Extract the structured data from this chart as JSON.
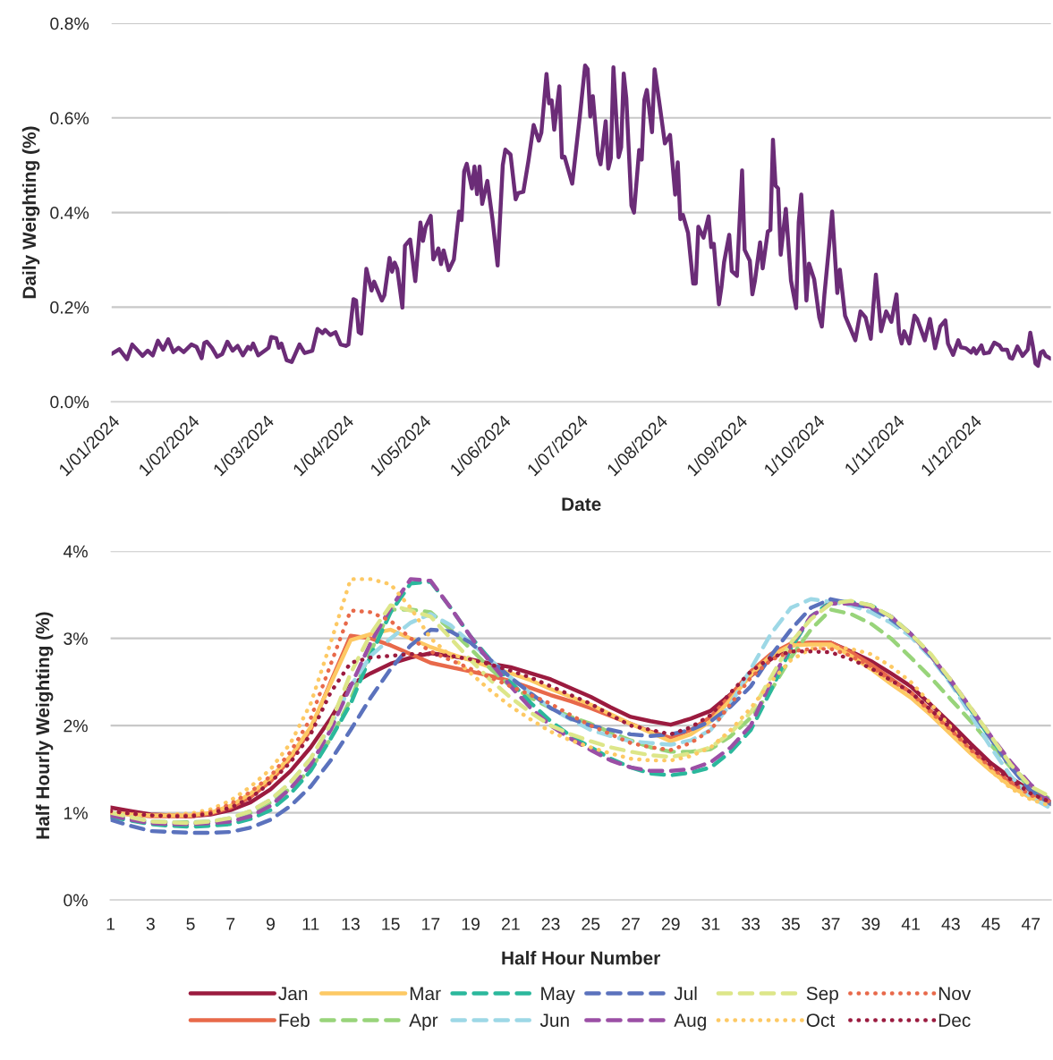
{
  "chart_data": [
    {
      "type": "line",
      "xlabel": "Date",
      "ylabel": "Daily Weighting (%)",
      "x": [
        "2024-01-01",
        "2024-01-04",
        "2024-01-07",
        "2024-01-09",
        "2024-01-13",
        "2024-01-15",
        "2024-01-17",
        "2024-01-19",
        "2024-01-21",
        "2024-01-23",
        "2024-01-25",
        "2024-01-27",
        "2024-01-29",
        "2024-02-01",
        "2024-02-03",
        "2024-02-05",
        "2024-02-06",
        "2024-02-07",
        "2024-02-09",
        "2024-02-11",
        "2024-02-13",
        "2024-02-15",
        "2024-02-17",
        "2024-02-19",
        "2024-02-21",
        "2024-02-23",
        "2024-02-24",
        "2024-02-25",
        "2024-02-27",
        "2024-03-01",
        "2024-03-02",
        "2024-03-03",
        "2024-03-05",
        "2024-03-06",
        "2024-03-07",
        "2024-03-09",
        "2024-03-11",
        "2024-03-14",
        "2024-03-16",
        "2024-03-19",
        "2024-03-21",
        "2024-03-23",
        "2024-03-24",
        "2024-03-26",
        "2024-03-28",
        "2024-03-30",
        "2024-04-01",
        "2024-04-02",
        "2024-04-04",
        "2024-04-05",
        "2024-04-06",
        "2024-04-07",
        "2024-04-09",
        "2024-04-11",
        "2024-04-12",
        "2024-04-15",
        "2024-04-16",
        "2024-04-18",
        "2024-04-19",
        "2024-04-20",
        "2024-04-21",
        "2024-04-23",
        "2024-04-24",
        "2024-04-26",
        "2024-04-28",
        "2024-04-30",
        "2024-05-01",
        "2024-05-02",
        "2024-05-04",
        "2024-05-05",
        "2024-05-07",
        "2024-05-08",
        "2024-05-09",
        "2024-05-11",
        "2024-05-13",
        "2024-05-15",
        "2024-05-16",
        "2024-05-17",
        "2024-05-18",
        "2024-05-20",
        "2024-05-21",
        "2024-05-22",
        "2024-05-23",
        "2024-05-24",
        "2024-05-26",
        "2024-05-28",
        "2024-05-30",
        "2024-06-01",
        "2024-06-02",
        "2024-06-04",
        "2024-06-06",
        "2024-06-07",
        "2024-06-09",
        "2024-06-11",
        "2024-06-13",
        "2024-06-15",
        "2024-06-16",
        "2024-06-18",
        "2024-06-19",
        "2024-06-20",
        "2024-06-21",
        "2024-06-23",
        "2024-06-24",
        "2024-06-25",
        "2024-06-28",
        "2024-07-01",
        "2024-07-03",
        "2024-07-04",
        "2024-07-05",
        "2024-07-06",
        "2024-07-08",
        "2024-07-09",
        "2024-07-11",
        "2024-07-12",
        "2024-07-13",
        "2024-07-14",
        "2024-07-16",
        "2024-07-17",
        "2024-07-18",
        "2024-07-19",
        "2024-07-21",
        "2024-07-22",
        "2024-07-24",
        "2024-07-25",
        "2024-07-26",
        "2024-07-27",
        "2024-07-29",
        "2024-07-30",
        "2024-08-01",
        "2024-08-03",
        "2024-08-05",
        "2024-08-07",
        "2024-08-08",
        "2024-08-09",
        "2024-08-10",
        "2024-08-12",
        "2024-08-14",
        "2024-08-15",
        "2024-08-16",
        "2024-08-18",
        "2024-08-20",
        "2024-08-21",
        "2024-08-22",
        "2024-08-24",
        "2024-08-25",
        "2024-08-26",
        "2024-08-28",
        "2024-08-29",
        "2024-08-31",
        "2024-09-02",
        "2024-09-03",
        "2024-09-05",
        "2024-09-06",
        "2024-09-07",
        "2024-09-09",
        "2024-09-10",
        "2024-09-12",
        "2024-09-13",
        "2024-09-14",
        "2024-09-15",
        "2024-09-16",
        "2024-09-17",
        "2024-09-19",
        "2024-09-21",
        "2024-09-23",
        "2024-09-24",
        "2024-09-25",
        "2024-09-27",
        "2024-09-28",
        "2024-09-30",
        "2024-10-02",
        "2024-10-03",
        "2024-10-04",
        "2024-10-06",
        "2024-10-07",
        "2024-10-09",
        "2024-10-10",
        "2024-10-12",
        "2024-10-14",
        "2024-10-16",
        "2024-10-18",
        "2024-10-20",
        "2024-10-22",
        "2024-10-24",
        "2024-10-26",
        "2024-10-28",
        "2024-10-30",
        "2024-11-01",
        "2024-11-02",
        "2024-11-03",
        "2024-11-04",
        "2024-11-06",
        "2024-11-08",
        "2024-11-09",
        "2024-11-12",
        "2024-11-14",
        "2024-11-16",
        "2024-11-18",
        "2024-11-20",
        "2024-11-21",
        "2024-11-23",
        "2024-11-25",
        "2024-11-26",
        "2024-11-28",
        "2024-11-30",
        "2024-12-01",
        "2024-12-02",
        "2024-12-04",
        "2024-12-05",
        "2024-12-07",
        "2024-12-09",
        "2024-12-11",
        "2024-12-12",
        "2024-12-14",
        "2024-12-15",
        "2024-12-16",
        "2024-12-18",
        "2024-12-20",
        "2024-12-22",
        "2024-12-23",
        "2024-12-24",
        "2024-12-25",
        "2024-12-26",
        "2024-12-27",
        "2024-12-28",
        "2024-12-29",
        "2024-12-31"
      ],
      "series": [
        {
          "color": "#6b2c77",
          "values": [
            0.101,
            0.111,
            0.09,
            0.121,
            0.097,
            0.108,
            0.098,
            0.129,
            0.11,
            0.132,
            0.105,
            0.114,
            0.105,
            0.121,
            0.116,
            0.092,
            0.124,
            0.127,
            0.114,
            0.095,
            0.101,
            0.127,
            0.108,
            0.118,
            0.098,
            0.116,
            0.111,
            0.123,
            0.098,
            0.11,
            0.114,
            0.137,
            0.134,
            0.114,
            0.123,
            0.088,
            0.084,
            0.121,
            0.103,
            0.108,
            0.154,
            0.145,
            0.152,
            0.141,
            0.147,
            0.121,
            0.118,
            0.121,
            0.217,
            0.214,
            0.147,
            0.144,
            0.281,
            0.235,
            0.254,
            0.214,
            0.225,
            0.304,
            0.275,
            0.294,
            0.281,
            0.199,
            0.33,
            0.343,
            0.255,
            0.379,
            0.34,
            0.369,
            0.393,
            0.301,
            0.324,
            0.291,
            0.32,
            0.278,
            0.301,
            0.402,
            0.384,
            0.487,
            0.503,
            0.451,
            0.497,
            0.439,
            0.497,
            0.418,
            0.467,
            0.386,
            0.288,
            0.5,
            0.533,
            0.523,
            0.428,
            0.441,
            0.444,
            0.51,
            0.585,
            0.552,
            0.569,
            0.693,
            0.631,
            0.637,
            0.575,
            0.667,
            0.516,
            0.518,
            0.461,
            0.606,
            0.711,
            0.703,
            0.603,
            0.646,
            0.522,
            0.502,
            0.593,
            0.493,
            0.515,
            0.707,
            0.517,
            0.538,
            0.694,
            0.642,
            0.415,
            0.4,
            0.532,
            0.512,
            0.638,
            0.659,
            0.57,
            0.703,
            0.626,
            0.546,
            0.564,
            0.438,
            0.506,
            0.386,
            0.395,
            0.357,
            0.25,
            0.25,
            0.37,
            0.347,
            0.392,
            0.327,
            0.334,
            0.206,
            0.243,
            0.295,
            0.353,
            0.276,
            0.266,
            0.489,
            0.321,
            0.298,
            0.227,
            0.256,
            0.337,
            0.282,
            0.36,
            0.363,
            0.554,
            0.457,
            0.451,
            0.311,
            0.408,
            0.256,
            0.198,
            0.379,
            0.438,
            0.214,
            0.292,
            0.259,
            0.178,
            0.159,
            0.227,
            0.34,
            0.402,
            0.23,
            0.279,
            0.182,
            0.156,
            0.13,
            0.191,
            0.178,
            0.133,
            0.269,
            0.149,
            0.191,
            0.169,
            0.227,
            0.146,
            0.123,
            0.149,
            0.123,
            0.182,
            0.175,
            0.13,
            0.175,
            0.113,
            0.159,
            0.172,
            0.123,
            0.099,
            0.13,
            0.115,
            0.113,
            0.104,
            0.113,
            0.102,
            0.119,
            0.102,
            0.104,
            0.125,
            0.119,
            0.11,
            0.11,
            0.093,
            0.091,
            0.117,
            0.097,
            0.11,
            0.146,
            0.117,
            0.081,
            0.076,
            0.104,
            0.107,
            0.097,
            0.091
          ]
        }
      ],
      "xlim": [
        "2024-01-01",
        "2024-12-31"
      ],
      "xticks": [
        {
          "value": "2024-01-01",
          "label": "1/01/2024"
        },
        {
          "value": "2024-02-01",
          "label": "1/02/2024"
        },
        {
          "value": "2024-03-01",
          "label": "1/03/2024"
        },
        {
          "value": "2024-04-01",
          "label": "1/04/2024"
        },
        {
          "value": "2024-05-01",
          "label": "1/05/2024"
        },
        {
          "value": "2024-06-01",
          "label": "1/06/2024"
        },
        {
          "value": "2024-07-01",
          "label": "1/07/2024"
        },
        {
          "value": "2024-08-01",
          "label": "1/08/2024"
        },
        {
          "value": "2024-09-01",
          "label": "1/09/2024"
        },
        {
          "value": "2024-10-01",
          "label": "1/10/2024"
        },
        {
          "value": "2024-11-01",
          "label": "1/11/2024"
        },
        {
          "value": "2024-12-01",
          "label": "1/12/2024"
        }
      ],
      "ylim": [
        0,
        0.8
      ],
      "yticks": [
        {
          "value": 0,
          "label": "0.0%"
        },
        {
          "value": 0.2,
          "label": "0.2%"
        },
        {
          "value": 0.4,
          "label": "0.4%"
        },
        {
          "value": 0.6,
          "label": "0.6%"
        },
        {
          "value": 0.8,
          "label": "0.8%"
        }
      ],
      "grid": "y",
      "line_style": "solid"
    },
    {
      "type": "line",
      "xlabel": "Half Hour Number",
      "ylabel": "Half Hourly Weighting (%)",
      "x": [
        1,
        2,
        3,
        4,
        5,
        6,
        7,
        8,
        9,
        10,
        11,
        12,
        13,
        14,
        15,
        16,
        17,
        18,
        19,
        20,
        21,
        22,
        23,
        24,
        25,
        26,
        27,
        28,
        29,
        30,
        31,
        32,
        33,
        34,
        35,
        36,
        37,
        38,
        39,
        40,
        41,
        42,
        43,
        44,
        45,
        46,
        47,
        48
      ],
      "series": [
        {
          "name": "Jan",
          "color": "#9b1b3f",
          "line_style": "solid",
          "values": [
            1.06,
            1.02,
            0.98,
            0.97,
            0.96,
            0.98,
            1.03,
            1.12,
            1.27,
            1.48,
            1.75,
            2.08,
            2.47,
            2.6,
            2.71,
            2.78,
            2.83,
            2.8,
            2.76,
            2.71,
            2.67,
            2.6,
            2.53,
            2.43,
            2.33,
            2.21,
            2.1,
            2.05,
            2.01,
            2.08,
            2.17,
            2.36,
            2.57,
            2.76,
            2.92,
            2.95,
            2.95,
            2.85,
            2.74,
            2.6,
            2.45,
            2.24,
            2.02,
            1.79,
            1.57,
            1.4,
            1.25,
            1.12
          ]
        },
        {
          "name": "Feb",
          "color": "#e8694a",
          "line_style": "solid",
          "values": [
            1.0,
            0.98,
            0.96,
            0.96,
            0.96,
            0.99,
            1.06,
            1.18,
            1.36,
            1.62,
            1.95,
            2.5,
            3.03,
            3.0,
            2.92,
            2.82,
            2.72,
            2.67,
            2.62,
            2.57,
            2.51,
            2.43,
            2.35,
            2.28,
            2.2,
            2.11,
            2.02,
            1.93,
            1.86,
            1.95,
            2.1,
            2.35,
            2.62,
            2.82,
            2.94,
            2.95,
            2.95,
            2.84,
            2.7,
            2.54,
            2.38,
            2.17,
            1.95,
            1.72,
            1.5,
            1.34,
            1.2,
            1.12
          ]
        },
        {
          "name": "Mar",
          "color": "#fdc964",
          "line_style": "solid",
          "values": [
            1.0,
            0.98,
            0.97,
            0.97,
            0.97,
            1.0,
            1.08,
            1.22,
            1.4,
            1.65,
            1.98,
            2.48,
            2.98,
            3.05,
            3.1,
            3.0,
            2.9,
            2.82,
            2.75,
            2.67,
            2.6,
            2.52,
            2.42,
            2.33,
            2.24,
            2.13,
            2.02,
            1.92,
            1.82,
            1.9,
            2.05,
            2.3,
            2.58,
            2.8,
            2.92,
            2.93,
            2.93,
            2.8,
            2.65,
            2.48,
            2.32,
            2.12,
            1.9,
            1.68,
            1.48,
            1.3,
            1.17,
            1.1
          ]
        },
        {
          "name": "Apr",
          "color": "#98d47a",
          "line_style": "dashed",
          "values": [
            0.97,
            0.93,
            0.9,
            0.89,
            0.89,
            0.9,
            0.93,
            1.0,
            1.12,
            1.28,
            1.5,
            1.85,
            2.3,
            2.85,
            3.33,
            3.33,
            3.3,
            3.1,
            2.88,
            2.65,
            2.45,
            2.32,
            2.2,
            2.1,
            2.02,
            1.92,
            1.83,
            1.75,
            1.7,
            1.7,
            1.73,
            1.88,
            2.09,
            2.4,
            2.78,
            3.1,
            3.33,
            3.28,
            3.17,
            3.0,
            2.78,
            2.55,
            2.3,
            2.05,
            1.78,
            1.52,
            1.28,
            1.15
          ]
        },
        {
          "name": "May",
          "color": "#2bb89c",
          "line_style": "dashed",
          "values": [
            0.95,
            0.91,
            0.87,
            0.85,
            0.84,
            0.85,
            0.87,
            0.93,
            1.03,
            1.22,
            1.48,
            1.85,
            2.25,
            2.8,
            3.3,
            3.63,
            3.65,
            3.35,
            3.02,
            2.75,
            2.5,
            2.26,
            2.05,
            1.88,
            1.75,
            1.62,
            1.52,
            1.45,
            1.43,
            1.46,
            1.52,
            1.7,
            1.95,
            2.4,
            2.88,
            3.25,
            3.42,
            3.42,
            3.38,
            3.25,
            3.05,
            2.8,
            2.5,
            2.18,
            1.85,
            1.55,
            1.3,
            1.12
          ]
        },
        {
          "name": "Jun",
          "color": "#9dd8e6",
          "line_style": "dashed",
          "values": [
            1.0,
            0.95,
            0.9,
            0.89,
            0.88,
            0.9,
            0.94,
            1.02,
            1.15,
            1.35,
            1.62,
            2.0,
            2.45,
            2.8,
            3.0,
            3.18,
            3.28,
            3.15,
            2.95,
            2.75,
            2.55,
            2.37,
            2.2,
            2.07,
            1.95,
            1.88,
            1.82,
            1.8,
            1.78,
            1.83,
            1.95,
            2.25,
            2.65,
            3.05,
            3.35,
            3.45,
            3.42,
            3.38,
            3.3,
            3.18,
            3.02,
            2.78,
            2.48,
            2.12,
            1.75,
            1.42,
            1.18,
            1.05
          ]
        },
        {
          "name": "Jul",
          "color": "#5b72bd",
          "line_style": "dashed",
          "values": [
            0.92,
            0.85,
            0.79,
            0.78,
            0.77,
            0.77,
            0.78,
            0.83,
            0.92,
            1.08,
            1.3,
            1.6,
            1.95,
            2.32,
            2.65,
            2.92,
            3.1,
            3.08,
            2.95,
            2.75,
            2.55,
            2.37,
            2.2,
            2.08,
            2.0,
            1.95,
            1.9,
            1.88,
            1.9,
            1.95,
            2.05,
            2.22,
            2.45,
            2.8,
            3.1,
            3.35,
            3.45,
            3.4,
            3.35,
            3.22,
            3.05,
            2.8,
            2.5,
            2.18,
            1.85,
            1.52,
            1.25,
            1.1
          ]
        },
        {
          "name": "Aug",
          "color": "#9b4fa5",
          "line_style": "dashed",
          "values": [
            0.97,
            0.92,
            0.88,
            0.87,
            0.87,
            0.88,
            0.9,
            0.96,
            1.08,
            1.28,
            1.55,
            1.95,
            2.45,
            2.95,
            3.35,
            3.68,
            3.66,
            3.35,
            3.02,
            2.72,
            2.45,
            2.2,
            2.0,
            1.85,
            1.72,
            1.6,
            1.52,
            1.48,
            1.48,
            1.5,
            1.58,
            1.75,
            2.0,
            2.5,
            2.92,
            3.25,
            3.4,
            3.4,
            3.36,
            3.25,
            3.05,
            2.8,
            2.52,
            2.2,
            1.88,
            1.58,
            1.32,
            1.12
          ]
        },
        {
          "name": "Sep",
          "color": "#dde689",
          "line_style": "dashed",
          "values": [
            1.0,
            0.95,
            0.9,
            0.89,
            0.88,
            0.9,
            0.94,
            1.02,
            1.15,
            1.35,
            1.62,
            2.02,
            2.6,
            3.05,
            3.38,
            3.32,
            3.25,
            3.0,
            2.75,
            2.52,
            2.32,
            2.15,
            2.0,
            1.9,
            1.82,
            1.75,
            1.7,
            1.66,
            1.64,
            1.68,
            1.75,
            1.92,
            2.15,
            2.55,
            2.95,
            3.22,
            3.4,
            3.43,
            3.38,
            3.25,
            3.05,
            2.82,
            2.52,
            2.2,
            1.88,
            1.55,
            1.3,
            1.18
          ]
        },
        {
          "name": "Oct",
          "color": "#fdc964",
          "line_style": "dotted",
          "values": [
            1.0,
            0.98,
            0.97,
            0.98,
            0.99,
            1.04,
            1.14,
            1.3,
            1.5,
            1.8,
            2.25,
            2.95,
            3.68,
            3.68,
            3.62,
            3.35,
            3.0,
            2.8,
            2.6,
            2.4,
            2.22,
            2.07,
            1.93,
            1.83,
            1.75,
            1.68,
            1.62,
            1.6,
            1.6,
            1.65,
            1.75,
            1.95,
            2.2,
            2.5,
            2.75,
            2.88,
            2.9,
            2.88,
            2.82,
            2.68,
            2.5,
            2.25,
            1.98,
            1.72,
            1.48,
            1.28,
            1.15,
            1.08
          ]
        },
        {
          "name": "Nov",
          "color": "#e8694a",
          "line_style": "dotted",
          "values": [
            1.02,
            0.99,
            0.97,
            0.97,
            0.97,
            1.01,
            1.1,
            1.24,
            1.42,
            1.7,
            2.08,
            2.7,
            3.32,
            3.3,
            3.2,
            3.0,
            2.85,
            2.75,
            2.65,
            2.55,
            2.45,
            2.35,
            2.25,
            2.12,
            2.0,
            1.9,
            1.8,
            1.75,
            1.72,
            1.8,
            1.95,
            2.25,
            2.55,
            2.75,
            2.85,
            2.88,
            2.88,
            2.8,
            2.68,
            2.52,
            2.38,
            2.15,
            1.95,
            1.72,
            1.52,
            1.35,
            1.2,
            1.12
          ]
        },
        {
          "name": "Dec",
          "color": "#9b1b3f",
          "line_style": "dotted",
          "values": [
            1.02,
            0.99,
            0.97,
            0.96,
            0.96,
            0.99,
            1.06,
            1.17,
            1.35,
            1.58,
            1.9,
            2.38,
            2.72,
            2.78,
            2.8,
            2.82,
            2.82,
            2.8,
            2.76,
            2.7,
            2.63,
            2.55,
            2.45,
            2.35,
            2.25,
            2.12,
            2.0,
            1.95,
            1.9,
            1.98,
            2.12,
            2.38,
            2.62,
            2.78,
            2.85,
            2.85,
            2.84,
            2.76,
            2.66,
            2.52,
            2.38,
            2.18,
            1.97,
            1.75,
            1.55,
            1.38,
            1.22,
            1.12
          ]
        }
      ],
      "xlim": [
        1,
        48
      ],
      "xticks": [
        1,
        3,
        5,
        7,
        9,
        11,
        13,
        15,
        17,
        19,
        21,
        23,
        25,
        27,
        29,
        31,
        33,
        35,
        37,
        39,
        41,
        43,
        45,
        47
      ],
      "ylim": [
        0,
        4
      ],
      "yticks": [
        {
          "value": 0,
          "label": "0%"
        },
        {
          "value": 1,
          "label": "1%"
        },
        {
          "value": 2,
          "label": "2%"
        },
        {
          "value": 3,
          "label": "3%"
        },
        {
          "value": 4,
          "label": "4%"
        }
      ],
      "grid": "y",
      "legend": "bottom"
    }
  ]
}
